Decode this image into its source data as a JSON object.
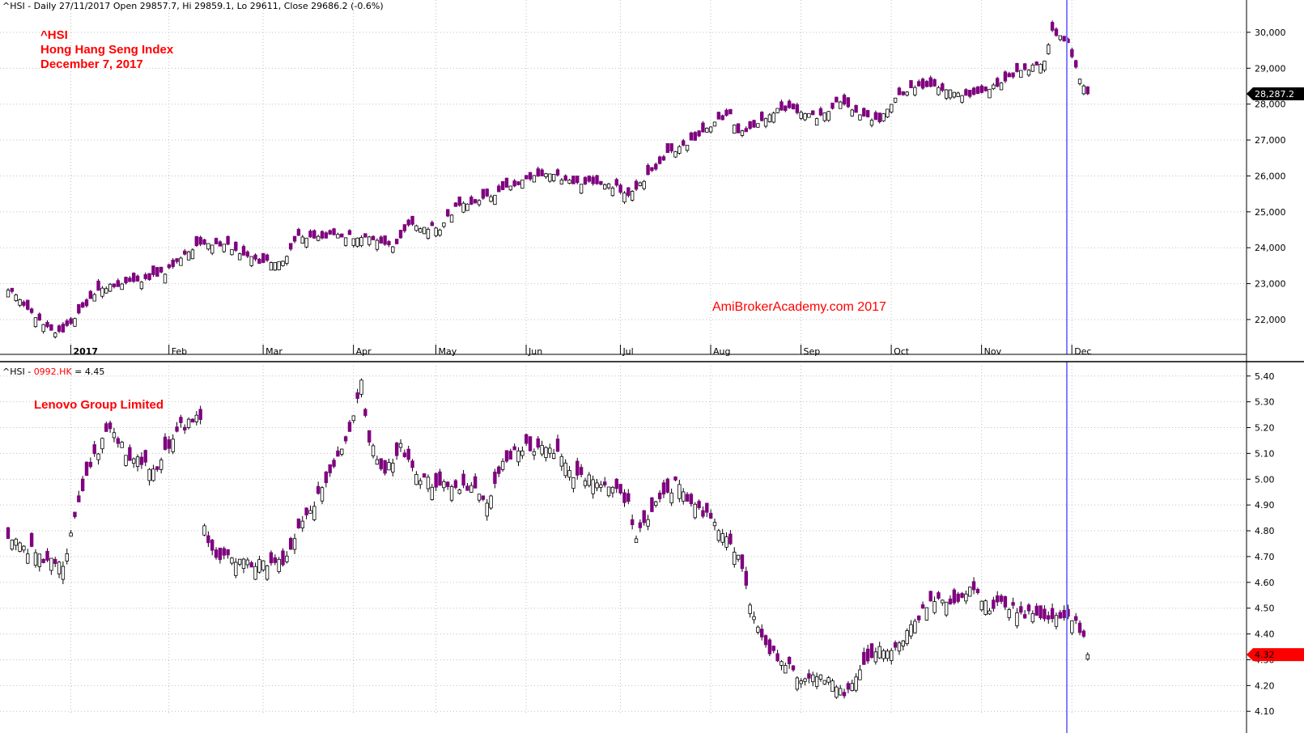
{
  "colors": {
    "up": "#ffffff",
    "down": "#800080",
    "outline": "#000000",
    "wick": "#000000",
    "grid": "#c0c0c0",
    "cursor": "#8080ff",
    "last_top": "#000000",
    "last_bottom": "#ff0000",
    "annotation": "#ff0000"
  },
  "top_panel": {
    "header": "^HSI - Daily 27/11/2017 Open 29857.7, Hi 29859.1, Lo 29611, Close 29686.2 (-0.6%)",
    "notes": {
      "line1": "^HSI",
      "line2": "Hong Hang Seng Index",
      "line3": "December 7, 2017"
    },
    "watermark": "AmiBrokerAcademy.com  2017",
    "last_label": "28,287.2"
  },
  "bottom_panel": {
    "header_prefix": "^HSI - ",
    "header_symbol": "0992.HK",
    "header_value": " = 4.45",
    "note": "Lenovo Group Limited",
    "last_label": "4.32"
  },
  "chart_data": [
    {
      "type": "candlestick",
      "series_name": "^HSI",
      "ylim": [
        21300,
        30900
      ],
      "y_ticks": [
        "22,000",
        "23,000",
        "24,000",
        "25,000",
        "26,000",
        "27,000",
        "28,000",
        "29,000",
        "30,000"
      ],
      "y_tick_values": [
        22000,
        23000,
        24000,
        25000,
        26000,
        27000,
        28000,
        29000,
        30000
      ],
      "x_ticks": [
        "2017",
        "Feb",
        "Mar",
        "Apr",
        "May",
        "Jun",
        "Jul",
        "Aug",
        "Sep",
        "Oct",
        "Nov",
        "Dec"
      ],
      "x_tick_bars": [
        17,
        42,
        66,
        89,
        110,
        133,
        157,
        180,
        203,
        226,
        249,
        272
      ],
      "anchors": [
        [
          0,
          22850
        ],
        [
          5,
          22300
        ],
        [
          12,
          21600
        ],
        [
          14,
          21650
        ],
        [
          18,
          22200
        ],
        [
          24,
          22900
        ],
        [
          30,
          23000
        ],
        [
          34,
          23100
        ],
        [
          40,
          23300
        ],
        [
          46,
          23900
        ],
        [
          50,
          24100
        ],
        [
          56,
          24050
        ],
        [
          64,
          23600
        ],
        [
          70,
          23650
        ],
        [
          74,
          24300
        ],
        [
          80,
          24300
        ],
        [
          84,
          24350
        ],
        [
          92,
          24250
        ],
        [
          98,
          24000
        ],
        [
          102,
          24600
        ],
        [
          110,
          24550
        ],
        [
          114,
          25100
        ],
        [
          124,
          25500
        ],
        [
          132,
          25900
        ],
        [
          138,
          26050
        ],
        [
          144,
          25800
        ],
        [
          150,
          25800
        ],
        [
          155,
          25700
        ],
        [
          158,
          25400
        ],
        [
          162,
          25900
        ],
        [
          168,
          26600
        ],
        [
          176,
          27100
        ],
        [
          180,
          27500
        ],
        [
          184,
          27750
        ],
        [
          186,
          27200
        ],
        [
          190,
          27300
        ],
        [
          196,
          27900
        ],
        [
          202,
          27800
        ],
        [
          206,
          27600
        ],
        [
          212,
          28100
        ],
        [
          216,
          27800
        ],
        [
          222,
          27500
        ],
        [
          226,
          28200
        ],
        [
          232,
          28500
        ],
        [
          240,
          28400
        ],
        [
          244,
          28200
        ],
        [
          250,
          28400
        ],
        [
          254,
          28700
        ],
        [
          260,
          29000
        ],
        [
          264,
          29200
        ],
        [
          266,
          30000
        ],
        [
          268,
          29850
        ],
        [
          270,
          29700
        ],
        [
          272,
          29000
        ],
        [
          274,
          28500
        ],
        [
          275,
          28290
        ]
      ],
      "seed": 7,
      "noise": 60,
      "body": [
        80,
        260
      ],
      "wick": 60,
      "last_close": 28287.2
    },
    {
      "type": "candlestick",
      "series_name": "0992.HK",
      "ylim": [
        4.085,
        5.44
      ],
      "y_ticks": [
        "4.10",
        "4.20",
        "4.30",
        "4.40",
        "4.50",
        "4.60",
        "4.70",
        "4.80",
        "4.90",
        "5.00",
        "5.10",
        "5.20",
        "5.30",
        "5.40"
      ],
      "y_tick_values": [
        4.1,
        4.2,
        4.3,
        4.4,
        4.5,
        4.6,
        4.7,
        4.8,
        4.9,
        5.0,
        5.1,
        5.2,
        5.3,
        5.4
      ],
      "anchors": [
        [
          0,
          4.78
        ],
        [
          4,
          4.74
        ],
        [
          10,
          4.68
        ],
        [
          14,
          4.66
        ],
        [
          16,
          4.78
        ],
        [
          20,
          5.02
        ],
        [
          26,
          5.2
        ],
        [
          30,
          5.1
        ],
        [
          34,
          5.06
        ],
        [
          38,
          5.05
        ],
        [
          44,
          5.2
        ],
        [
          49,
          5.25
        ],
        [
          50,
          4.8
        ],
        [
          53,
          4.7
        ],
        [
          60,
          4.68
        ],
        [
          64,
          4.67
        ],
        [
          70,
          4.68
        ],
        [
          74,
          4.8
        ],
        [
          80,
          4.97
        ],
        [
          84,
          5.08
        ],
        [
          88,
          5.24
        ],
        [
          90,
          5.37
        ],
        [
          92,
          5.15
        ],
        [
          96,
          5.02
        ],
        [
          100,
          5.12
        ],
        [
          104,
          5.0
        ],
        [
          110,
          4.98
        ],
        [
          114,
          4.95
        ],
        [
          118,
          4.98
        ],
        [
          122,
          4.9
        ],
        [
          126,
          5.05
        ],
        [
          130,
          5.12
        ],
        [
          134,
          5.12
        ],
        [
          140,
          5.1
        ],
        [
          144,
          5.02
        ],
        [
          148,
          5.0
        ],
        [
          152,
          4.98
        ],
        [
          156,
          4.95
        ],
        [
          158,
          4.9
        ],
        [
          160,
          4.78
        ],
        [
          164,
          4.88
        ],
        [
          170,
          4.98
        ],
        [
          174,
          4.9
        ],
        [
          178,
          4.86
        ],
        [
          182,
          4.78
        ],
        [
          186,
          4.7
        ],
        [
          190,
          4.45
        ],
        [
          194,
          4.33
        ],
        [
          198,
          4.28
        ],
        [
          202,
          4.22
        ],
        [
          206,
          4.25
        ],
        [
          210,
          4.2
        ],
        [
          214,
          4.17
        ],
        [
          218,
          4.3
        ],
        [
          222,
          4.34
        ],
        [
          226,
          4.35
        ],
        [
          230,
          4.42
        ],
        [
          234,
          4.52
        ],
        [
          238,
          4.55
        ],
        [
          242,
          4.52
        ],
        [
          246,
          4.58
        ],
        [
          250,
          4.5
        ],
        [
          252,
          4.52
        ],
        [
          256,
          4.5
        ],
        [
          260,
          4.47
        ],
        [
          264,
          4.45
        ],
        [
          268,
          4.47
        ],
        [
          272,
          4.44
        ],
        [
          274,
          4.41
        ],
        [
          275,
          4.32
        ]
      ],
      "seed": 13,
      "noise": 0.02,
      "body": [
        0.01,
        0.055
      ],
      "wick": 0.02,
      "last_close": 4.32
    }
  ]
}
